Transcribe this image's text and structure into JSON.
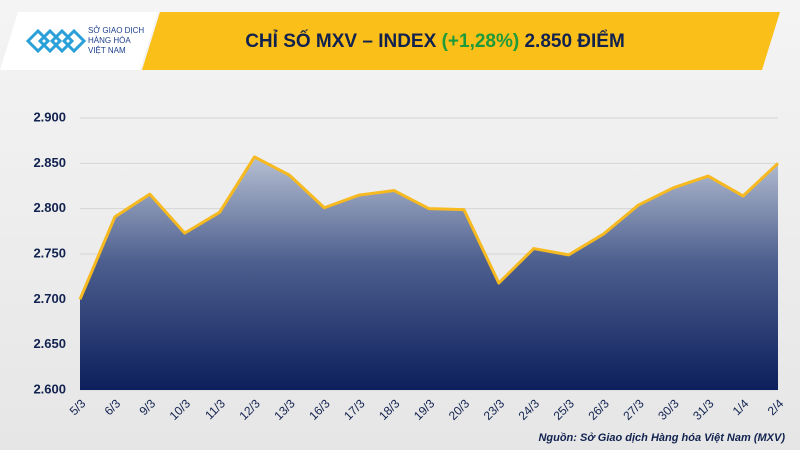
{
  "chart_data": {
    "type": "area",
    "title": "CHỈ SỐ MXV – INDEX",
    "title_change": "(+1,28%)",
    "title_value": "2.850 ĐIỂM",
    "logo_lines": [
      "SỞ GIAO DỊCH",
      "HÀNG HÓA",
      "VIỆT NAM"
    ],
    "source": "Nguồn: Sở Giao dịch Hàng hóa Việt Nam (MXV)",
    "categories": [
      "5/3",
      "6/3",
      "9/3",
      "10/3",
      "11/3",
      "12/3",
      "13/3",
      "16/3",
      "17/3",
      "18/3",
      "19/3",
      "20/3",
      "23/3",
      "24/3",
      "25/3",
      "26/3",
      "27/3",
      "30/3",
      "31/3",
      "1/4",
      "2/4"
    ],
    "values": [
      2700,
      2791,
      2816,
      2773,
      2796,
      2857,
      2837,
      2801,
      2815,
      2820,
      2800,
      2799,
      2718,
      2756,
      2749,
      2772,
      2804,
      2823,
      2836,
      2814,
      2850
    ],
    "color": "#f6b91f",
    "ylim": [
      2600,
      2900
    ],
    "yticks": [
      {
        "value": 2600,
        "label": "2.600"
      },
      {
        "value": 2650,
        "label": "2.650"
      },
      {
        "value": 2700,
        "label": "2.700"
      },
      {
        "value": 2750,
        "label": "2.750"
      },
      {
        "value": 2800,
        "label": "2.800"
      },
      {
        "value": 2850,
        "label": "2.850"
      },
      {
        "value": 2900,
        "label": "2.900"
      }
    ],
    "grid": true
  }
}
